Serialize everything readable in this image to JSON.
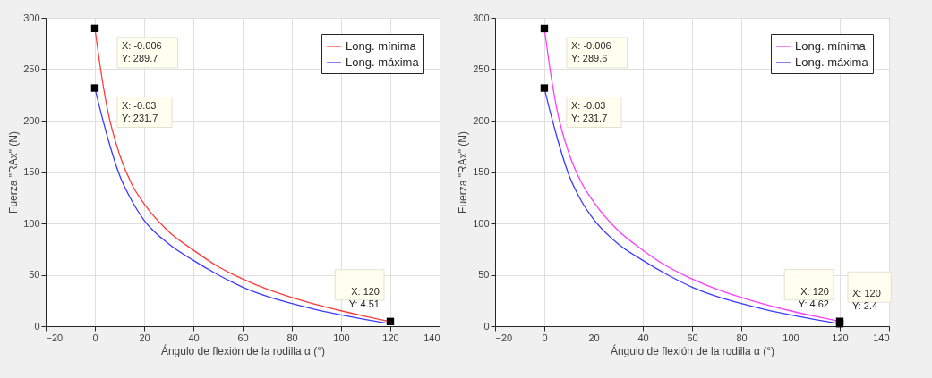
{
  "chart_data": [
    {
      "type": "line",
      "xlabel": "Ángulo de flexión de la rodilla α (°)",
      "ylabel": "Fuerza \"RAx\" (N)",
      "xlim": [
        -20,
        140
      ],
      "ylim": [
        0,
        300
      ],
      "xticks": [
        -20,
        0,
        20,
        40,
        60,
        80,
        100,
        120,
        140
      ],
      "yticks": [
        0,
        50,
        100,
        150,
        200,
        250,
        300
      ],
      "grid": true,
      "legend": "top right",
      "line_style": "solid",
      "marker": "none",
      "series": [
        {
          "name": "Long. mínima",
          "color": "#ff3b3b",
          "x": [
            -0.006,
            2,
            5,
            10,
            15,
            20,
            30,
            40,
            50,
            60,
            70,
            80,
            90,
            100,
            110,
            120
          ],
          "values": [
            289.7,
            255,
            212,
            167,
            138,
            119,
            92,
            74,
            58,
            46,
            36,
            28,
            21,
            15,
            9.5,
            4.51
          ]
        },
        {
          "name": "Long. máxima",
          "color": "#3b3bff",
          "x": [
            -0.03,
            2,
            5,
            10,
            15,
            20,
            30,
            40,
            50,
            60,
            70,
            80,
            90,
            100,
            110,
            120
          ],
          "values": [
            231.7,
            212,
            185,
            147,
            122,
            103,
            80,
            64,
            50,
            38,
            29,
            22,
            16,
            11,
            6.5,
            2.4
          ]
        }
      ],
      "annotations": [
        {
          "text": "X: -0.006\nY: 289.7",
          "x": -0.006,
          "y": 289.7
        },
        {
          "text": "X: -0.03\nY: 231.7",
          "x": -0.03,
          "y": 231.7
        },
        {
          "text": "X: 120\nY: 4.51",
          "x": 120,
          "y": 4.51
        }
      ]
    },
    {
      "type": "line",
      "xlabel": "Ángulo de flexión de la rodilla α (°)",
      "ylabel": "Fuerza \"RAx\" (N)",
      "xlim": [
        -20,
        140
      ],
      "ylim": [
        0,
        300
      ],
      "xticks": [
        -20,
        0,
        20,
        40,
        60,
        80,
        100,
        120,
        140
      ],
      "yticks": [
        0,
        50,
        100,
        150,
        200,
        250,
        300
      ],
      "grid": true,
      "legend": "top right",
      "line_style": "solid",
      "marker": "none",
      "series": [
        {
          "name": "Long. mínima",
          "color": "#ff3bff",
          "x": [
            -0.006,
            2,
            5,
            10,
            15,
            20,
            30,
            40,
            50,
            60,
            70,
            80,
            90,
            100,
            110,
            120
          ],
          "values": [
            289.6,
            255,
            212,
            168,
            140,
            121,
            93,
            74,
            58,
            46,
            36,
            28,
            21,
            15,
            9.6,
            4.62
          ]
        },
        {
          "name": "Long. máxima",
          "color": "#3b3bff",
          "x": [
            -0.03,
            2,
            5,
            10,
            15,
            20,
            30,
            40,
            50,
            60,
            70,
            80,
            90,
            100,
            110,
            120
          ],
          "values": [
            231.7,
            212,
            185,
            147,
            122,
            104,
            80,
            64,
            50,
            38,
            29,
            22,
            16,
            11,
            6.5,
            2.4
          ]
        }
      ],
      "annotations": [
        {
          "text": "X: -0.006\nY: 289.6",
          "x": -0.006,
          "y": 289.6
        },
        {
          "text": "X: -0.03\nY: 231.7",
          "x": -0.03,
          "y": 231.7
        },
        {
          "text": "X: 120\nY: 4.62",
          "x": 120,
          "y": 4.62
        },
        {
          "text": "X: 120\nY: 2.4",
          "x": 120,
          "y": 2.4
        }
      ]
    }
  ]
}
